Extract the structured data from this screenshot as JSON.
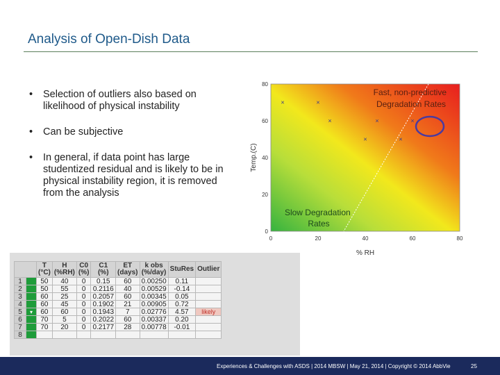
{
  "slide": {
    "title": "Analysis of Open-Dish Data",
    "bullets": [
      "Selection of outliers also based on likelihood of physical instability",
      "Can be subjective",
      "In general, if data point has large studentized residual and is likely to be in physical instability region, it is removed from the analysis"
    ],
    "bullet_icon": "•"
  },
  "chart_data": {
    "type": "scatter",
    "xlabel": "% RH",
    "ylabel": "Temp.(C)",
    "xlim": [
      0,
      80
    ],
    "ylim": [
      0,
      80
    ],
    "x_ticks": [
      0,
      20,
      40,
      60,
      80
    ],
    "y_ticks": [
      0,
      20,
      40,
      60,
      80
    ],
    "points": [
      {
        "x": 5,
        "y": 70
      },
      {
        "x": 20,
        "y": 70
      },
      {
        "x": 25,
        "y": 60
      },
      {
        "x": 45,
        "y": 60
      },
      {
        "x": 40,
        "y": 50
      },
      {
        "x": 55,
        "y": 50
      },
      {
        "x": 60,
        "y": 60
      }
    ],
    "annotations": {
      "fast": "Fast, non-predictive Degradation Rates",
      "slow": "Slow Degradation Rates"
    },
    "marker_color": "#3a3a8a",
    "circle_color": "#4a3aa0"
  },
  "table": {
    "headers": [
      [
        "T",
        "(°C)"
      ],
      [
        "H",
        "(%RH)"
      ],
      [
        "C0",
        "(%)"
      ],
      [
        "C1",
        "(%)"
      ],
      [
        "ET",
        "(days)"
      ],
      [
        "k obs",
        "(%/day)"
      ],
      [
        "StuRes",
        ""
      ],
      [
        "Outlier",
        ""
      ]
    ],
    "rows": [
      [
        "1",
        "50",
        "40",
        "0",
        "0.15",
        "60",
        "0.00250",
        "0.11",
        ""
      ],
      [
        "2",
        "50",
        "55",
        "0",
        "0.2116",
        "40",
        "0.00529",
        "-0.14",
        ""
      ],
      [
        "3",
        "60",
        "25",
        "0",
        "0.2057",
        "60",
        "0.00345",
        "0.05",
        ""
      ],
      [
        "4",
        "60",
        "45",
        "0",
        "0.1902",
        "21",
        "0.00905",
        "0.72",
        ""
      ],
      [
        "5",
        "60",
        "60",
        "0",
        "0.1943",
        "7",
        "0.02776",
        "4.57",
        "likely"
      ],
      [
        "6",
        "70",
        "5",
        "0",
        "0.2022",
        "60",
        "0.00337",
        "0.20",
        ""
      ],
      [
        "7",
        "70",
        "20",
        "0",
        "0.2177",
        "28",
        "0.00778",
        "-0.01",
        ""
      ],
      [
        "8",
        "",
        "",
        "",
        "",
        "",
        "",
        "",
        ""
      ]
    ],
    "dropdown_icon": "▾",
    "highlight_color": "#1e9c3a"
  },
  "footer": {
    "text": "Experiences & Challenges with ASDS | 2014 MBSW | May 21, 2014 | Copyright © 2014 AbbVie",
    "page_number": "25"
  }
}
